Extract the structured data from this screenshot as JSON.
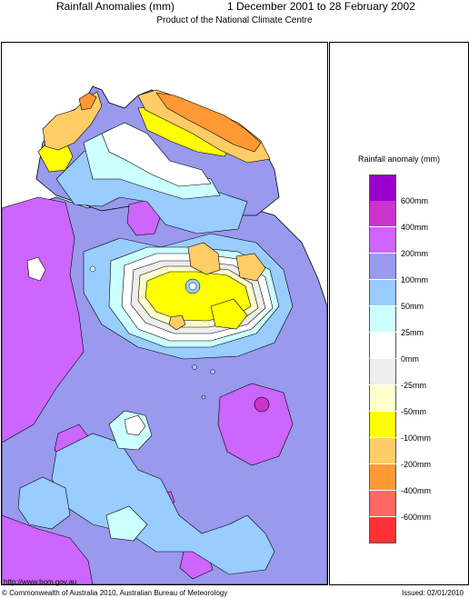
{
  "header": {
    "title": "Rainfall Anomalies (mm)",
    "period": "1 December 2001 to 28 February 2002",
    "subtitle": "Product of the National Climate Centre"
  },
  "legend": {
    "title": "Rainfall anomaly (mm)",
    "bins": [
      {
        "color": "#9900cc"
      },
      {
        "color": "#cc33cc"
      },
      {
        "color": "#cc66ff"
      },
      {
        "color": "#9999ee"
      },
      {
        "color": "#99ccff"
      },
      {
        "color": "#ccffff"
      },
      {
        "color": "#ffffff"
      },
      {
        "color": "#eeeeee"
      },
      {
        "color": "#ffffcc"
      },
      {
        "color": "#ffff00"
      },
      {
        "color": "#ffcc66"
      },
      {
        "color": "#ff9933"
      },
      {
        "color": "#ff6666"
      },
      {
        "color": "#ff3333"
      }
    ],
    "labels": [
      "600mm",
      "400mm",
      "200mm",
      "100mm",
      "50mm",
      "25mm",
      "0mm",
      "-25mm",
      "-50mm",
      "-100mm",
      "-200mm",
      "-400mm",
      "-600mm"
    ]
  },
  "footer": {
    "url": "http://www.bom.gov.au",
    "copyright": "© Commonwealth of Australia 2010, Australian Bureau of Meteorology",
    "issued": "Issued: 02/01/2010"
  },
  "map": {
    "colors": {
      "purple": "#cc66ff",
      "blue_violet": "#9999ee",
      "light_blue": "#99ccff",
      "cyan": "#ccffff",
      "white": "#ffffff",
      "grey": "#eeeeee",
      "cream": "#ffffcc",
      "yellow": "#ffff00",
      "light_orange": "#ffcc66",
      "orange": "#ff9933",
      "magenta": "#cc33cc"
    }
  }
}
